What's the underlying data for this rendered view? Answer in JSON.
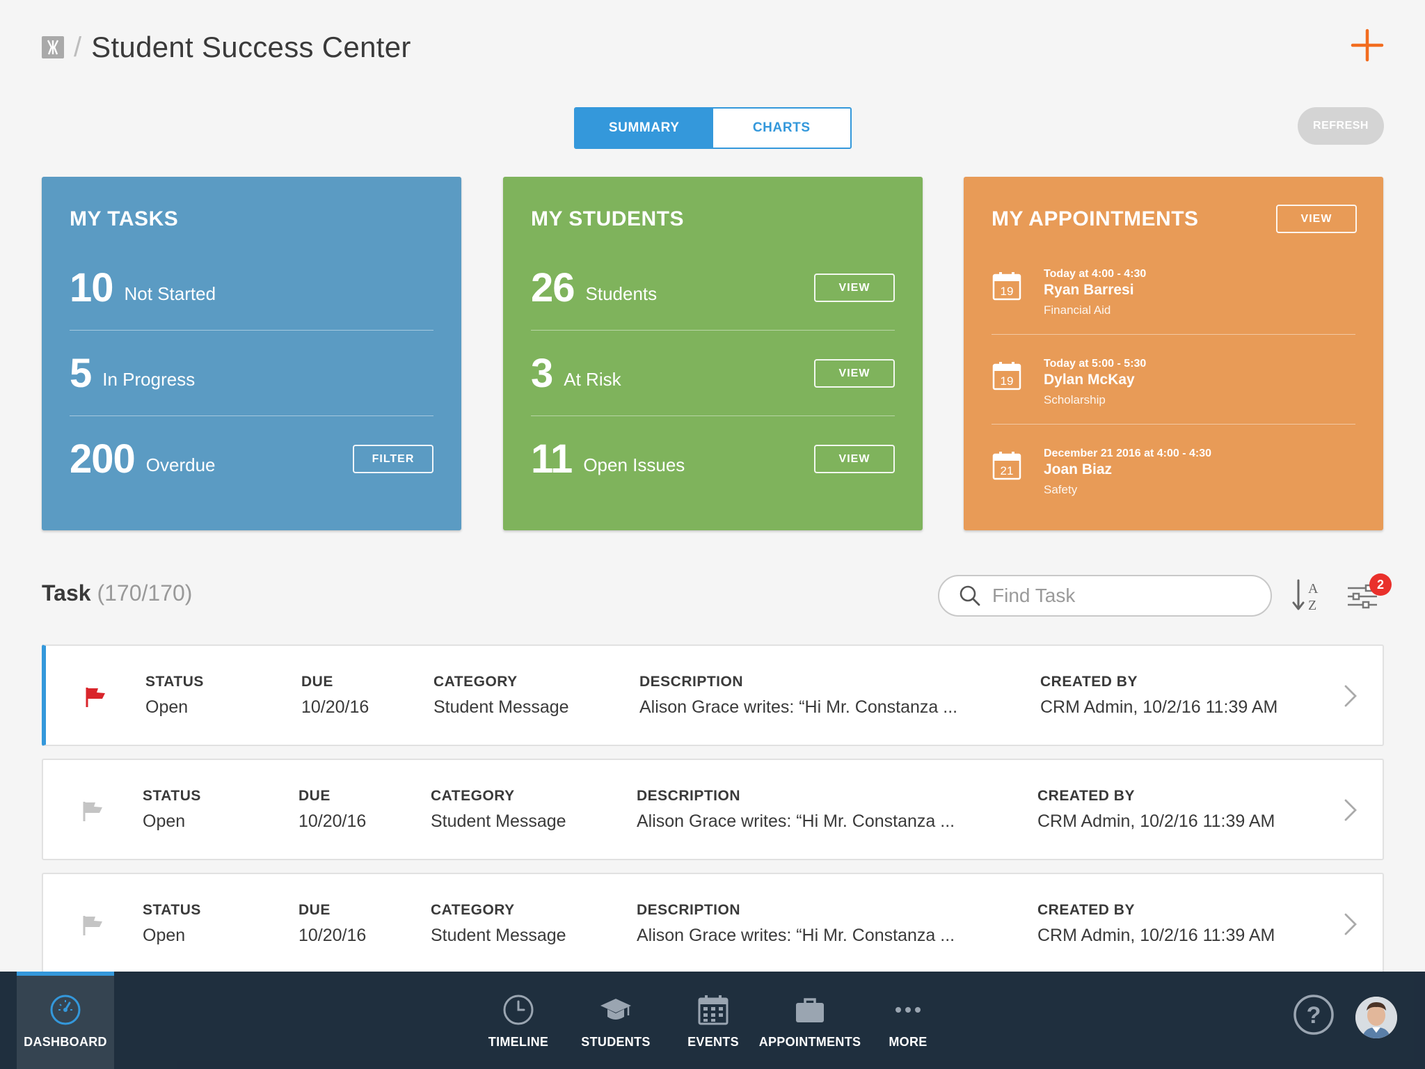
{
  "header": {
    "title": "Student Success Center",
    "separator": "/"
  },
  "view_toggle": {
    "summary": "SUMMARY",
    "charts": "CHARTS",
    "active": "summary"
  },
  "refresh_label": "REFRESH",
  "cards": {
    "tasks": {
      "title": "MY TASKS",
      "stats": [
        {
          "num": "10",
          "label": "Not Started"
        },
        {
          "num": "5",
          "label": "In Progress"
        },
        {
          "num": "200",
          "label": "Overdue"
        }
      ],
      "filter_label": "FILTER"
    },
    "students": {
      "title": "MY STUDENTS",
      "stats": [
        {
          "num": "26",
          "label": "Students",
          "button": "VIEW"
        },
        {
          "num": "3",
          "label": "At Risk",
          "button": "VIEW"
        },
        {
          "num": "11",
          "label": "Open Issues",
          "button": "VIEW"
        }
      ]
    },
    "appointments": {
      "title": "MY APPOINTMENTS",
      "view_label": "VIEW",
      "items": [
        {
          "day": "19",
          "when": "Today at 4:00 - 4:30",
          "name": "Ryan Barresi",
          "type": "Financial Aid"
        },
        {
          "day": "19",
          "when": "Today at 5:00 - 5:30",
          "name": "Dylan McKay",
          "type": "Scholarship"
        },
        {
          "day": "21",
          "when": "December 21 2016 at 4:00 - 4:30",
          "name": "Joan Biaz",
          "type": "Safety"
        }
      ]
    }
  },
  "task_list": {
    "label": "Task",
    "count": "(170/170)",
    "search_placeholder": "Find Task",
    "filter_badge": "2",
    "columns": {
      "status": "STATUS",
      "due": "DUE",
      "category": "CATEGORY",
      "description": "DESCRIPTION",
      "created": "CREATED BY"
    },
    "rows": [
      {
        "flagged": true,
        "status": "Open",
        "due": "10/20/16",
        "category": "Student Message",
        "description": "Alison Grace writes: “Hi Mr. Constanza  ...",
        "created": "CRM Admin, 10/2/16 11:39 AM"
      },
      {
        "flagged": false,
        "status": "Open",
        "due": "10/20/16",
        "category": "Student Message",
        "description": "Alison Grace writes: “Hi Mr. Constanza  ...",
        "created": "CRM Admin, 10/2/16 11:39 AM"
      },
      {
        "flagged": false,
        "status": "Open",
        "due": "10/20/16",
        "category": "Student Message",
        "description": "Alison Grace writes: “Hi Mr. Constanza  ...",
        "created": "CRM Admin, 10/2/16 11:39 AM"
      }
    ]
  },
  "tabbar": {
    "tabs": [
      {
        "label": "DASHBOARD",
        "icon": "dashboard-icon",
        "active": true
      },
      {
        "label": "TIMELINE",
        "icon": "clock-icon"
      },
      {
        "label": "STUDENTS",
        "icon": "graduation-cap-icon"
      },
      {
        "label": "EVENTS",
        "icon": "calendar-icon"
      },
      {
        "label": "APPOINTMENTS",
        "icon": "briefcase-icon"
      },
      {
        "label": "MORE",
        "icon": "more-icon"
      }
    ]
  },
  "colors": {
    "accent": "#3498db",
    "tasks_card": "#5b9bc3",
    "students_card": "#7fb35c",
    "appointments_card": "#e89b57",
    "add_button": "#f26c1f",
    "flag_active": "#d9252b",
    "badge": "#e9302b",
    "tabbar": "#182838"
  }
}
